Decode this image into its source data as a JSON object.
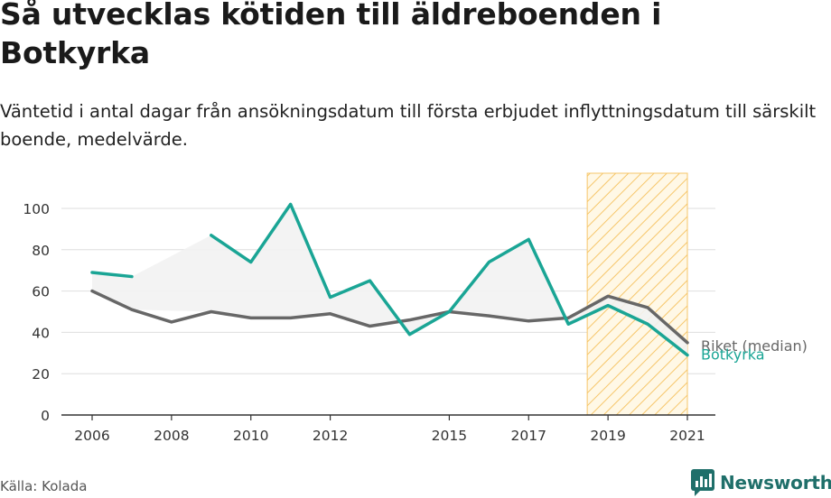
{
  "title": "Så utvecklas kötiden till äldreboenden i Botkyrka",
  "subtitle": "Väntetid i antal dagar från ansökningsdatum till första erbjudet inflyttningsdatum till särskilt boende, medelvärde.",
  "source": "Källa: Kolada",
  "brand": {
    "name": "Newsworthy",
    "icon": "newsworthy-logo-icon",
    "color": "#1f6f6a"
  },
  "chart_data": {
    "type": "line",
    "x_ticks": [
      2006,
      2008,
      2010,
      2012,
      2015,
      2017,
      2019,
      2021
    ],
    "y_ticks": [
      0,
      20,
      40,
      60,
      80,
      100
    ],
    "ylim": [
      0,
      100
    ],
    "xlim": [
      2006,
      2021
    ],
    "grid": true,
    "highlight_range": [
      2019,
      2021
    ],
    "series": [
      {
        "name": "Riket (median)",
        "color": "#676767",
        "x": [
          2006,
          2007,
          2008,
          2009,
          2010,
          2011,
          2012,
          2013,
          2014,
          2015,
          2016,
          2017,
          2018,
          2019,
          2020,
          2021
        ],
        "values": [
          60,
          51,
          45,
          50,
          47,
          47,
          49,
          43,
          46,
          50,
          48,
          45.5,
          47,
          57.5,
          52,
          35
        ]
      },
      {
        "name": "Botkyrka",
        "color": "#1aa595",
        "x": [
          2006,
          2007,
          2008,
          2009,
          2010,
          2011,
          2012,
          2013,
          2014,
          2015,
          2016,
          2017,
          2018,
          2019,
          2020,
          2021
        ],
        "values": [
          69,
          67,
          null,
          87,
          74,
          102,
          57,
          65,
          39,
          50,
          74,
          85,
          44,
          53,
          44,
          29
        ]
      }
    ]
  }
}
